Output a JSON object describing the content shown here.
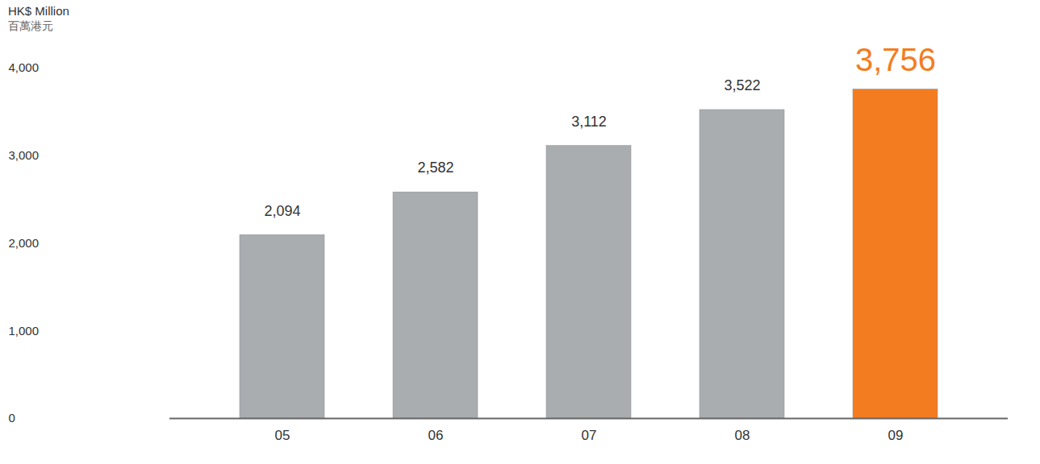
{
  "chart_data": {
    "type": "bar",
    "y_label": [
      "HK$ Million",
      "百萬港元"
    ],
    "categories": [
      "05",
      "06",
      "07",
      "08",
      "09"
    ],
    "values": [
      2094,
      2582,
      3112,
      3522,
      3756
    ],
    "value_labels": [
      "2,094",
      "2,582",
      "3,112",
      "3,522",
      "3,756"
    ],
    "colors": [
      "#a9adb0",
      "#a9adb0",
      "#a9adb0",
      "#a9adb0",
      "#f47c20"
    ],
    "ylim": [
      0,
      4000
    ],
    "yticks": [
      {
        "value": 0,
        "label": "0"
      },
      {
        "value": 1000,
        "label": "1,000"
      },
      {
        "value": 2000,
        "label": "2,000"
      },
      {
        "value": 3000,
        "label": "3,000"
      },
      {
        "value": 4000,
        "label": "4,000"
      }
    ],
    "grid": false,
    "data_labels": true
  }
}
